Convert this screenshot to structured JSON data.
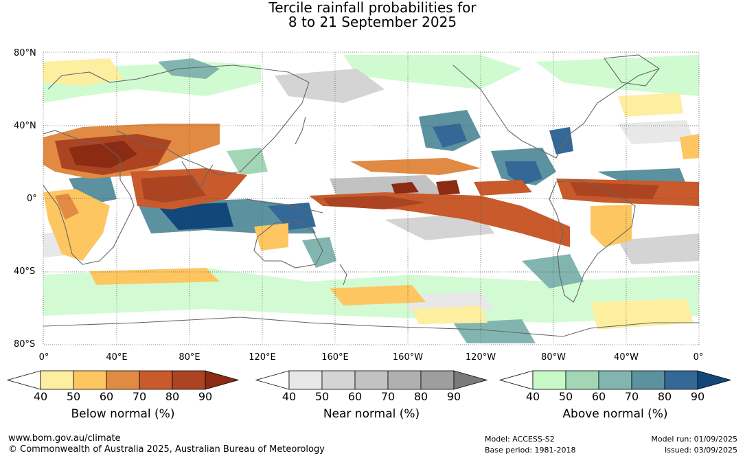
{
  "title": {
    "line1": "Tercile rainfall probabilities for",
    "line2": "8 to 21 September 2025"
  },
  "axes": {
    "lat_labels": [
      "80°N",
      "40°N",
      "0°",
      "40°S",
      "80°S"
    ],
    "lon_labels": [
      "0°",
      "40°E",
      "80°E",
      "120°E",
      "160°E",
      "160°W",
      "120°W",
      "80°W",
      "40°W",
      "0°"
    ]
  },
  "colorbars": [
    {
      "title": "Below normal (%)",
      "ticks": [
        "40",
        "50",
        "60",
        "70",
        "80",
        "90"
      ],
      "colors": [
        "#ffffff",
        "#fdeea0",
        "#fdc661",
        "#e08a43",
        "#c85a2b",
        "#ac4421",
        "#8b2b14"
      ]
    },
    {
      "title": "Near normal (%)",
      "ticks": [
        "40",
        "50",
        "60",
        "70",
        "80",
        "90"
      ],
      "colors": [
        "#ffffff",
        "#e8e8e8",
        "#d4d4d4",
        "#c2c2c2",
        "#b0b0b0",
        "#9e9e9e",
        "#7a7a7a"
      ]
    },
    {
      "title": "Above normal (%)",
      "ticks": [
        "40",
        "50",
        "60",
        "70",
        "80",
        "90"
      ],
      "colors": [
        "#ffffff",
        "#c8fac8",
        "#a3d6b4",
        "#82b5b0",
        "#5c91a0",
        "#346896",
        "#12477a"
      ]
    }
  ],
  "footer": {
    "website": "www.bom.gov.au/climate",
    "copyright": "© Commonwealth of Australia 2025, Australian Bureau of Meteorology",
    "model": "Model: ACCESS-S2",
    "base_period": "Base period: 1981-2018",
    "model_run": "Model run: 01/09/2025",
    "issued": "Issued: 03/09/2025"
  }
}
